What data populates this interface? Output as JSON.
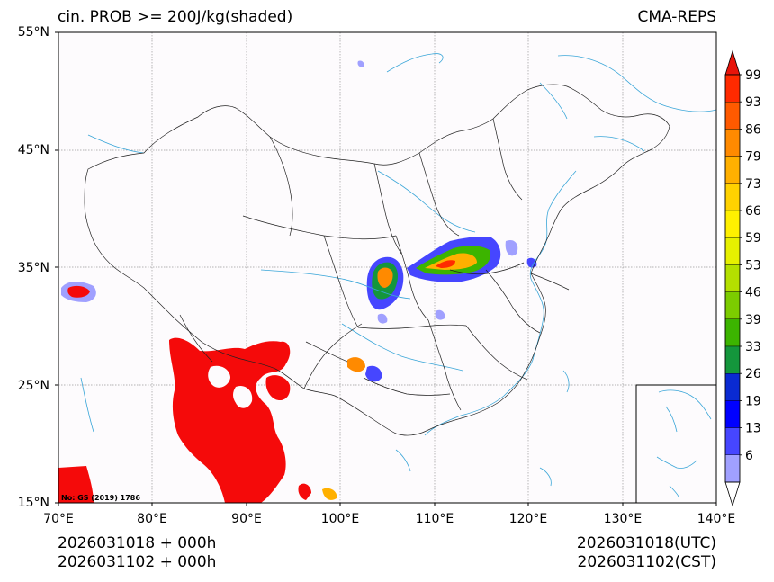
{
  "header": {
    "left_title": "cin. PROB >= 200J/kg(shaded)",
    "right_title": "CMA-REPS"
  },
  "axes": {
    "lat_ticks": [
      "55°N",
      "45°N",
      "35°N",
      "25°N",
      "15°N"
    ],
    "lon_ticks": [
      "70°E",
      "80°E",
      "90°E",
      "100°E",
      "110°E",
      "120°E",
      "130°E",
      "140°E"
    ],
    "lon_range": [
      70,
      140
    ],
    "lat_range": [
      15,
      55
    ]
  },
  "map_note": "No: GS (2019) 1786",
  "colorbar": {
    "labels": [
      "99",
      "93",
      "86",
      "79",
      "73",
      "66",
      "59",
      "53",
      "46",
      "39",
      "33",
      "26",
      "19",
      "13",
      "6"
    ],
    "colors": [
      "#ff2a00",
      "#ff5a00",
      "#ff8a00",
      "#ffb000",
      "#ffd200",
      "#fff000",
      "#e6f000",
      "#b4e000",
      "#7ccc00",
      "#3cb400",
      "#14963c",
      "#0a2ad2",
      "#0000ff",
      "#4646ff",
      "#a0a0ff"
    ],
    "over_color": "#e8140a",
    "under_color": "#ffffff"
  },
  "footer": {
    "init_utc": "2026031018  +  000h",
    "init_cst": "2026031102  +  000h",
    "valid_utc": "2026031018(UTC)",
    "valid_cst": "2026031102(CST)"
  }
}
